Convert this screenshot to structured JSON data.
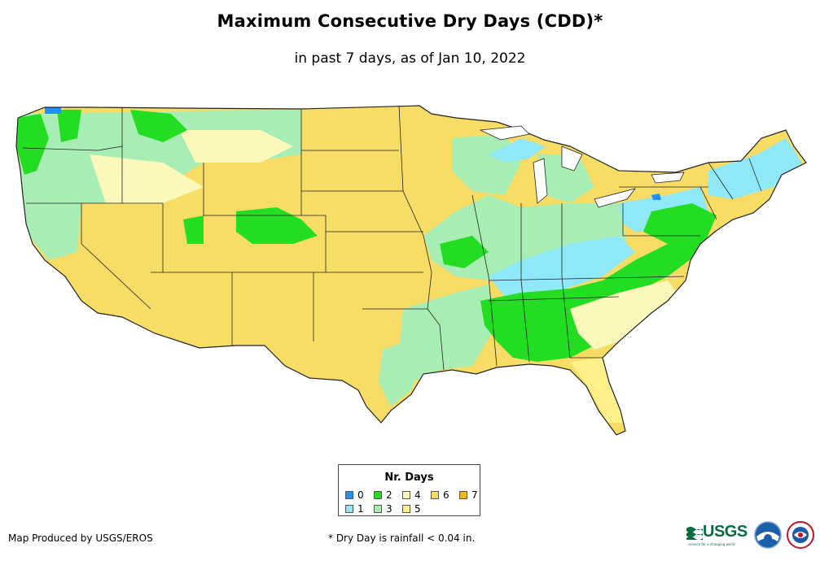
{
  "header": {
    "title": "Maximum Consecutive Dry Days (CDD)*",
    "subtitle": "in past 7 days, as of Jan 10, 2022"
  },
  "legend": {
    "title": "Nr. Days",
    "items": [
      {
        "label": "0",
        "color": "#1e90ff"
      },
      {
        "label": "1",
        "color": "#8fe8f8"
      },
      {
        "label": "2",
        "color": "#22dd22"
      },
      {
        "label": "3",
        "color": "#a8eeb4"
      },
      {
        "label": "4",
        "color": "#fbf8bc"
      },
      {
        "label": "5",
        "color": "#fff08a"
      },
      {
        "label": "6",
        "color": "#f7dc66"
      },
      {
        "label": "7",
        "color": "#f5b800"
      }
    ]
  },
  "footer": {
    "credit": "Map Produced by USGS/EROS",
    "note": "* Dry Day is rainfall < 0.04 in.",
    "usgs_logo_text": "USGS",
    "usgs_tagline": "science for a changing world"
  },
  "colors": {
    "state_border": "#222222",
    "ocean": "#ffffff"
  }
}
